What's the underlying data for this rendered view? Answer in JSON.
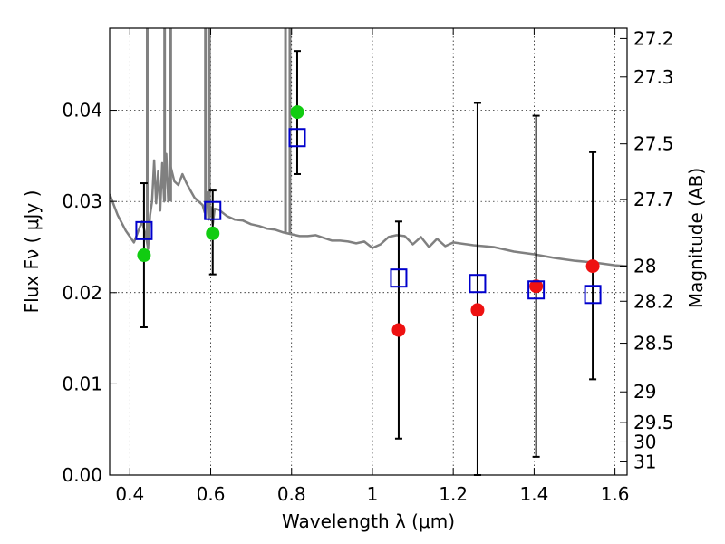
{
  "chart_data": {
    "type": "scatter",
    "xlabel": "Wavelength  λ (μm)",
    "ylabel": "Flux  Fν  ( μJy )",
    "y2label": "Magnitude (AB)",
    "xlim": [
      0.35,
      1.63
    ],
    "ylim": [
      0.0,
      0.049
    ],
    "x_ticks": [
      0.4,
      0.6,
      0.8,
      1.0,
      1.2,
      1.4,
      1.6
    ],
    "x_tick_labels": [
      "0.4",
      "0.6",
      "0.8",
      "1",
      "1.2",
      "1.4",
      "1.6"
    ],
    "y_ticks": [
      0.0,
      0.01,
      0.02,
      0.03,
      0.04
    ],
    "y_tick_labels": [
      "0.00",
      "0.01",
      "0.02",
      "0.03",
      "0.04"
    ],
    "mag_ticks": [
      27.2,
      27.3,
      27.5,
      27.7,
      28,
      28.2,
      28.5,
      29,
      29.5,
      30,
      31
    ],
    "mag_tick_labels": [
      "27.2",
      "27.3",
      "27.5",
      "27.7",
      "28",
      "28.2",
      "28.5",
      "29",
      "29.5",
      "30",
      "31"
    ],
    "grid": true,
    "colors": {
      "green": "#11cc11",
      "red": "#ee1111",
      "model": "#808080",
      "box": "#0000cc",
      "errorbar": "#000000"
    },
    "series": [
      {
        "marker": "square-open",
        "color": "#0000cc",
        "x": [
          0.435,
          0.605,
          0.814,
          1.065,
          1.26,
          1.405,
          1.545
        ],
        "y": [
          0.0268,
          0.029,
          0.037,
          0.0216,
          0.021,
          0.0203,
          0.0198
        ],
        "yerr_low": [
          0.0162,
          0.022,
          0.033,
          0.004,
          0.0,
          0.002,
          0.0105
        ],
        "yerr_high": [
          0.032,
          0.0312,
          0.0465,
          0.0278,
          0.0408,
          0.0394,
          0.0354
        ]
      },
      {
        "marker": "circle",
        "color": "#11cc11",
        "x": [
          0.435,
          0.605,
          0.814
        ],
        "y": [
          0.0241,
          0.0265,
          0.0398
        ]
      },
      {
        "marker": "circle",
        "color": "#ee1111",
        "x": [
          1.065,
          1.26,
          1.405,
          1.545
        ],
        "y": [
          0.0159,
          0.0181,
          0.0207,
          0.0229
        ]
      },
      {
        "type": "line",
        "color": "#808080",
        "x": [
          0.35,
          0.37,
          0.39,
          0.41,
          0.43,
          0.44,
          0.445,
          0.45,
          0.455,
          0.46,
          0.465,
          0.47,
          0.475,
          0.48,
          0.485,
          0.49,
          0.495,
          0.5,
          0.51,
          0.52,
          0.53,
          0.54,
          0.55,
          0.56,
          0.57,
          0.58,
          0.585,
          0.59,
          0.595,
          0.6,
          0.605,
          0.61,
          0.62,
          0.64,
          0.66,
          0.68,
          0.7,
          0.72,
          0.74,
          0.76,
          0.78,
          0.8,
          0.82,
          0.84,
          0.86,
          0.88,
          0.9,
          0.92,
          0.94,
          0.96,
          0.98,
          1.0,
          1.02,
          1.04,
          1.06,
          1.08,
          1.1,
          1.12,
          1.14,
          1.16,
          1.18,
          1.2,
          1.25,
          1.3,
          1.35,
          1.4,
          1.45,
          1.5,
          1.55,
          1.6,
          1.63
        ],
        "y": [
          0.0308,
          0.0285,
          0.0268,
          0.0255,
          0.0278,
          0.0262,
          0.0248,
          0.0285,
          0.03,
          0.0345,
          0.0298,
          0.0333,
          0.029,
          0.0342,
          0.03,
          0.0352,
          0.03,
          0.034,
          0.0322,
          0.0318,
          0.033,
          0.032,
          0.0312,
          0.0304,
          0.03,
          0.0296,
          0.0288,
          0.031,
          0.028,
          0.0294,
          0.0275,
          0.0292,
          0.0291,
          0.0284,
          0.028,
          0.0279,
          0.0275,
          0.0273,
          0.027,
          0.0269,
          0.0266,
          0.0264,
          0.0262,
          0.0262,
          0.0263,
          0.026,
          0.0257,
          0.0257,
          0.0256,
          0.0254,
          0.0256,
          0.0249,
          0.0253,
          0.0261,
          0.0263,
          0.0262,
          0.0253,
          0.0261,
          0.025,
          0.0259,
          0.0251,
          0.0255,
          0.0252,
          0.025,
          0.0245,
          0.0242,
          0.0238,
          0.0235,
          0.0233,
          0.023,
          0.0229
        ],
        "spikes": [
          {
            "x": 0.443,
            "y_bottom": 0.026
          },
          {
            "x": 0.486,
            "y_bottom": 0.03
          },
          {
            "x": 0.501,
            "y_bottom": 0.03
          },
          {
            "x": 0.587,
            "y_bottom": 0.028
          },
          {
            "x": 0.597,
            "y_bottom": 0.0285
          },
          {
            "x": 0.785,
            "y_bottom": 0.0265
          },
          {
            "x": 0.796,
            "y_bottom": 0.0265
          }
        ]
      }
    ]
  }
}
